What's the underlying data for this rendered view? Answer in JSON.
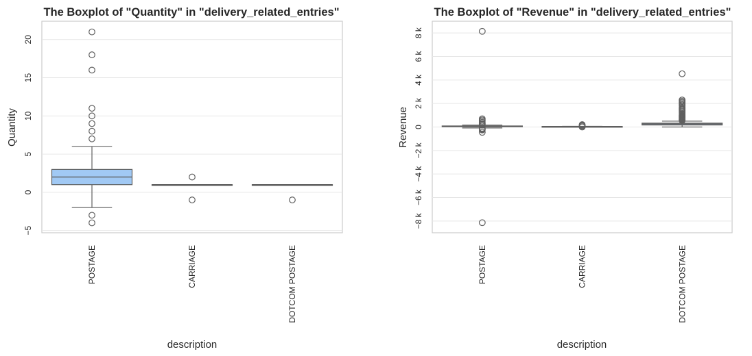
{
  "chart_data": [
    {
      "type": "boxplot",
      "title": "The Boxplot of \"Quantity\" in \"delivery_related_entries\"",
      "xlabel": "description",
      "ylabel": "Quantity",
      "categories": [
        "POSTAGE",
        "CARRIAGE",
        "DOTCOM POSTAGE"
      ],
      "yticks": [
        -5,
        0,
        5,
        10,
        15,
        20
      ],
      "ytick_labels": [
        "−5",
        "0",
        "5",
        "10",
        "15",
        "20"
      ],
      "ylim": [
        -5.3,
        22.4
      ],
      "grid": true,
      "box_color": "#a1c9f4",
      "line_color": "#5f5f5f",
      "boxes": [
        {
          "category": "POSTAGE",
          "whisker_low": -2,
          "q1": 1,
          "median": 2,
          "q3": 3,
          "whisker_high": 6,
          "outliers": [
            21,
            18,
            16,
            11,
            10,
            9,
            8,
            7,
            -3,
            -4
          ]
        },
        {
          "category": "CARRIAGE",
          "whisker_low": 1,
          "q1": 1,
          "median": 1,
          "q3": 1,
          "whisker_high": 1,
          "outliers": [
            2,
            -1
          ]
        },
        {
          "category": "DOTCOM POSTAGE",
          "whisker_low": 1,
          "q1": 1,
          "median": 1,
          "q3": 1,
          "whisker_high": 1,
          "outliers": [
            -1
          ]
        }
      ]
    },
    {
      "type": "boxplot",
      "title": "The Boxplot of \"Revenue\" in \"delivery_related_entries\"",
      "xlabel": "description",
      "ylabel": "Revenue",
      "categories": [
        "POSTAGE",
        "CARRIAGE",
        "DOTCOM POSTAGE"
      ],
      "yticks": [
        -8000,
        -6000,
        -4000,
        -2000,
        0,
        2000,
        4000,
        6000,
        8000
      ],
      "ytick_labels": [
        "−8 k",
        "−6 k",
        "−4 k",
        "−2 k",
        "0",
        "2 k",
        "4 k",
        "6 k",
        "8 k"
      ],
      "ylim": [
        -9000,
        9000
      ],
      "grid": true,
      "box_color": "#a1c9f4",
      "line_color": "#5f5f5f",
      "boxes": [
        {
          "category": "POSTAGE",
          "whisker_low": -80,
          "q1": 20,
          "median": 40,
          "q3": 90,
          "whisker_high": 160,
          "outliers": [
            8140,
            700,
            600,
            500,
            400,
            300,
            250,
            200,
            -100,
            -150,
            -200,
            -250,
            -450,
            -8140
          ]
        },
        {
          "category": "CARRIAGE",
          "whisker_low": 40,
          "q1": 50,
          "median": 50,
          "q3": 50,
          "whisker_high": 60,
          "outliers": [
            200,
            150,
            100,
            0,
            20
          ]
        },
        {
          "category": "DOTCOM POSTAGE",
          "whisker_low": 0,
          "q1": 170,
          "median": 250,
          "q3": 330,
          "whisker_high": 500,
          "outliers": [
            4530,
            2300,
            2200,
            2100,
            2000,
            1900,
            1800,
            1650,
            1550,
            1500,
            1400,
            1300,
            1200,
            1100,
            1000,
            950,
            900,
            850,
            800,
            750,
            700,
            650,
            600,
            550
          ]
        }
      ]
    }
  ]
}
